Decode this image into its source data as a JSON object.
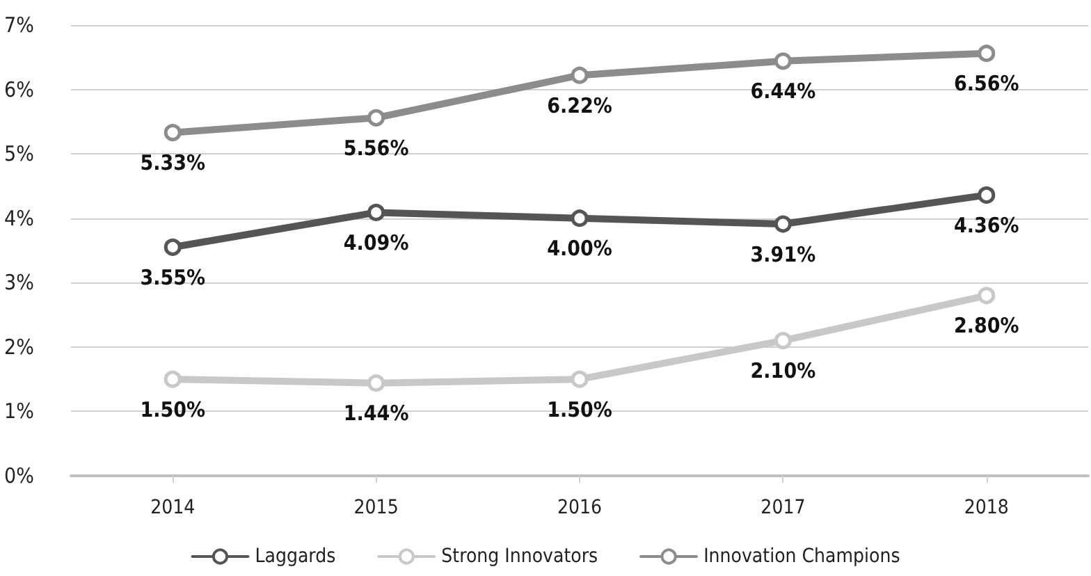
{
  "chart_data": {
    "type": "line",
    "categories": [
      "2014",
      "2015",
      "2016",
      "2017",
      "2018"
    ],
    "series": [
      {
        "name": "Laggards",
        "color": "#555555",
        "values": [
          3.55,
          4.09,
          4.0,
          3.91,
          4.36
        ],
        "value_labels": [
          "3.55%",
          "4.09%",
          "4.00%",
          "3.91%",
          "4.36%"
        ]
      },
      {
        "name": "Strong Innovators",
        "color": "#c8c8c8",
        "values": [
          1.5,
          1.44,
          1.5,
          2.1,
          2.8
        ],
        "value_labels": [
          "1.50%",
          "1.44%",
          "1.50%",
          "2.10%",
          "2.80%"
        ]
      },
      {
        "name": "Innovation Champions",
        "color": "#8c8c8c",
        "values": [
          5.33,
          5.56,
          6.22,
          6.44,
          6.56
        ],
        "value_labels": [
          "5.33%",
          "5.56%",
          "6.22%",
          "6.44%",
          "6.56%"
        ]
      }
    ],
    "ylim": [
      0,
      7
    ],
    "yticks": [
      {
        "value": 0,
        "label": "0%"
      },
      {
        "value": 1,
        "label": "1%"
      },
      {
        "value": 2,
        "label": "2%"
      },
      {
        "value": 3,
        "label": "3%"
      },
      {
        "value": 4,
        "label": "4%"
      },
      {
        "value": 5,
        "label": "5%"
      },
      {
        "value": 6,
        "label": "6%"
      },
      {
        "value": 7,
        "label": "7%"
      }
    ],
    "grid": "y",
    "legend": "bottom",
    "marker": "circle",
    "line_style": "solid"
  }
}
